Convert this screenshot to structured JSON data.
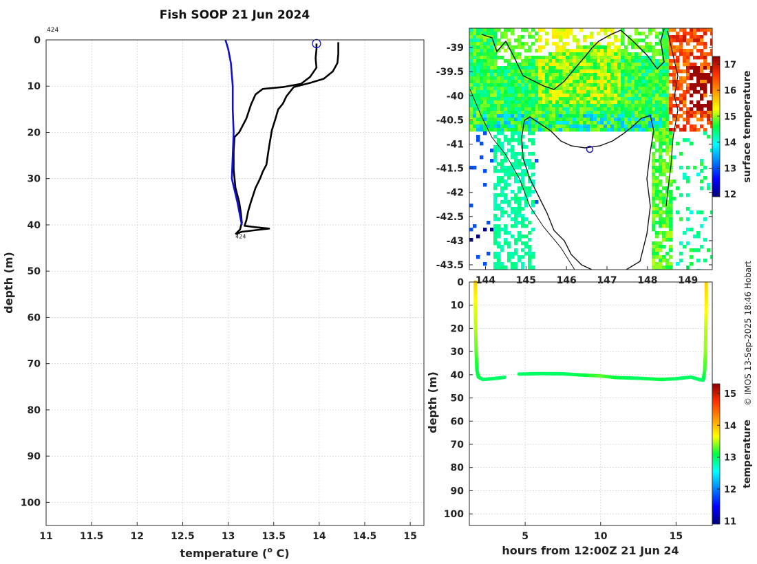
{
  "title": "Fish SOOP 21 Jun 2024",
  "credit": "© IMOS 13-Sep-2025 18:46 Hobart",
  "colors": {
    "profile_main": "#000000",
    "profile_model": "#1010d0",
    "grid": "#c8c8c8",
    "axis": "#262626"
  },
  "chart_data": [
    {
      "id": "profile",
      "type": "line",
      "title": "Fish SOOP 21 Jun 2024",
      "xlabel": "temperature (",
      "xlabel_sup": "o",
      "xlabel_unit": " C)",
      "ylabel": "depth (m)",
      "xlim": [
        11,
        15.15
      ],
      "ylim": [
        105,
        0
      ],
      "xticks": [
        "11",
        "11.5",
        "12",
        "12.5",
        "13",
        "13.5",
        "14",
        "14.5",
        "15"
      ],
      "xtick_values": [
        11,
        11.5,
        12,
        12.5,
        13,
        13.5,
        14,
        14.5,
        15
      ],
      "yticks": [
        "0",
        "10",
        "20",
        "30",
        "40",
        "50",
        "60",
        "70",
        "80",
        "90",
        "100"
      ],
      "ytick_values": [
        0,
        10,
        20,
        30,
        40,
        50,
        60,
        70,
        80,
        90,
        100
      ],
      "grid": true,
      "annotations": [
        {
          "text": "424",
          "x": 11.02,
          "y": -2.2,
          "note": "start"
        },
        {
          "text": "424",
          "x": 13.08,
          "y": 42.3,
          "note": "end"
        }
      ],
      "start_marker": {
        "x": 13.97,
        "y": 0.8
      },
      "series": [
        {
          "name": "downcast",
          "color": "#000000",
          "points": [
            [
              13.97,
              0.8
            ],
            [
              13.97,
              2
            ],
            [
              13.96,
              4
            ],
            [
              13.97,
              6
            ],
            [
              13.9,
              8
            ],
            [
              13.8,
              9.5
            ],
            [
              13.6,
              10.2
            ],
            [
              13.38,
              10.6
            ],
            [
              13.3,
              11.8
            ],
            [
              13.25,
              14
            ],
            [
              13.2,
              17
            ],
            [
              13.12,
              20
            ],
            [
              13.07,
              21
            ],
            [
              13.06,
              24
            ],
            [
              13.06,
              28
            ],
            [
              13.08,
              32
            ],
            [
              13.12,
              35
            ],
            [
              13.14,
              37.5
            ],
            [
              13.15,
              39.5
            ],
            [
              13.13,
              41
            ],
            [
              13.08,
              42
            ]
          ]
        },
        {
          "name": "upcast",
          "color": "#000000",
          "points": [
            [
              13.08,
              42
            ],
            [
              13.15,
              41.5
            ],
            [
              13.45,
              40.8
            ],
            [
              13.3,
              40.5
            ],
            [
              13.18,
              40.2
            ],
            [
              13.2,
              39
            ],
            [
              13.22,
              37
            ],
            [
              13.25,
              35
            ],
            [
              13.3,
              32
            ],
            [
              13.35,
              30
            ],
            [
              13.38,
              28.5
            ],
            [
              13.42,
              27
            ],
            [
              13.45,
              23
            ],
            [
              13.48,
              19.5
            ],
            [
              13.52,
              17
            ],
            [
              13.55,
              15
            ],
            [
              13.6,
              13.8
            ],
            [
              13.64,
              12.2
            ],
            [
              13.72,
              10.2
            ],
            [
              13.9,
              9.3
            ],
            [
              14.05,
              8.4
            ],
            [
              14.15,
              6.8
            ],
            [
              14.2,
              5
            ],
            [
              14.21,
              3
            ],
            [
              14.21,
              0.5
            ]
          ]
        },
        {
          "name": "reference",
          "color": "#1010d0",
          "points": [
            [
              12.97,
              0
            ],
            [
              13.0,
              2
            ],
            [
              13.03,
              5
            ],
            [
              13.05,
              10
            ],
            [
              13.05,
              15
            ],
            [
              13.06,
              20
            ],
            [
              13.05,
              25
            ],
            [
              13.04,
              30
            ],
            [
              13.1,
              35
            ],
            [
              13.15,
              40
            ]
          ]
        }
      ]
    },
    {
      "id": "sst_map",
      "type": "heatmap",
      "yticks": [
        "-39",
        "-39.5",
        "-40",
        "-40.5",
        "-41",
        "-41.5",
        "-42",
        "-42.5",
        "-43",
        "-43.5"
      ],
      "ytick_values": [
        -39,
        -39.5,
        -40,
        -40.5,
        -41,
        -41.5,
        -42,
        -42.5,
        -43,
        -43.5
      ],
      "xticks": [
        "144",
        "145",
        "146",
        "147",
        "148",
        "149"
      ],
      "xtick_values": [
        144,
        145,
        146,
        147,
        148,
        149
      ],
      "xlim": [
        143.6,
        149.6
      ],
      "ylim": [
        -43.6,
        -38.6
      ],
      "colorbar_label": "surface temperature",
      "colorbar_ticks": [
        "12",
        "13",
        "14",
        "15",
        "16",
        "17"
      ],
      "colorbar_tick_values": [
        12,
        13,
        14,
        15,
        16,
        17
      ],
      "colorbar_range": [
        11.9,
        17.3
      ],
      "vessel_marker": {
        "lon": 146.6,
        "lat": -41.1
      }
    },
    {
      "id": "depth_time",
      "type": "scatter",
      "xlabel": "hours from 12:00Z 21 Jun 24",
      "ylabel": "depth (m)",
      "xlim": [
        1.3,
        17.4
      ],
      "ylim": [
        105,
        0
      ],
      "xticks": [
        "5",
        "10",
        "15"
      ],
      "xtick_values": [
        5,
        10,
        15
      ],
      "yticks": [
        "0",
        "10",
        "20",
        "30",
        "40",
        "50",
        "60",
        "70",
        "80",
        "90",
        "100"
      ],
      "ytick_values": [
        0,
        10,
        20,
        30,
        40,
        50,
        60,
        70,
        80,
        90,
        100
      ],
      "colorbar_label": "temperature",
      "colorbar_ticks": [
        "11",
        "12",
        "13",
        "14",
        "15"
      ],
      "colorbar_tick_values": [
        11,
        12,
        13,
        14,
        15
      ],
      "colorbar_range": [
        10.9,
        15.3
      ],
      "segments": [
        {
          "name": "descent",
          "points": [
            [
              1.7,
              0,
              13.9
            ],
            [
              1.7,
              10,
              13.6
            ],
            [
              1.72,
              20,
              13.5
            ],
            [
              1.75,
              30,
              13.3
            ],
            [
              1.8,
              38,
              13.1
            ],
            [
              1.9,
              41,
              13.1
            ],
            [
              2.2,
              42,
              13.0
            ]
          ]
        },
        {
          "name": "bottom-a",
          "points": [
            [
              2.2,
              42,
              13.0
            ],
            [
              2.8,
              41.7,
              13.0
            ],
            [
              3.4,
              41.3,
              13.0
            ],
            [
              3.7,
              41.0,
              13.0
            ]
          ]
        },
        {
          "name": "bottom-b",
          "points": [
            [
              4.6,
              39.7,
              13.0
            ],
            [
              6,
              39.5,
              13.0
            ],
            [
              7.5,
              39.6,
              13.0
            ],
            [
              9,
              40.2,
              13.1
            ],
            [
              10,
              40.5,
              13.3
            ],
            [
              11,
              41.2,
              13.1
            ],
            [
              12.5,
              41.5,
              13.0
            ],
            [
              14,
              42,
              13.1
            ],
            [
              15,
              41.7,
              13.0
            ],
            [
              16,
              41,
              13.0
            ],
            [
              16.5,
              42,
              13.0
            ],
            [
              16.8,
              42.3,
              13.0
            ]
          ]
        },
        {
          "name": "ascent",
          "points": [
            [
              16.8,
              42.3,
              13.0
            ],
            [
              16.9,
              38,
              13.2
            ],
            [
              16.95,
              30,
              13.4
            ],
            [
              16.97,
              20,
              13.5
            ],
            [
              17.0,
              10,
              13.7
            ],
            [
              17.0,
              0,
              13.9
            ]
          ]
        }
      ]
    }
  ]
}
